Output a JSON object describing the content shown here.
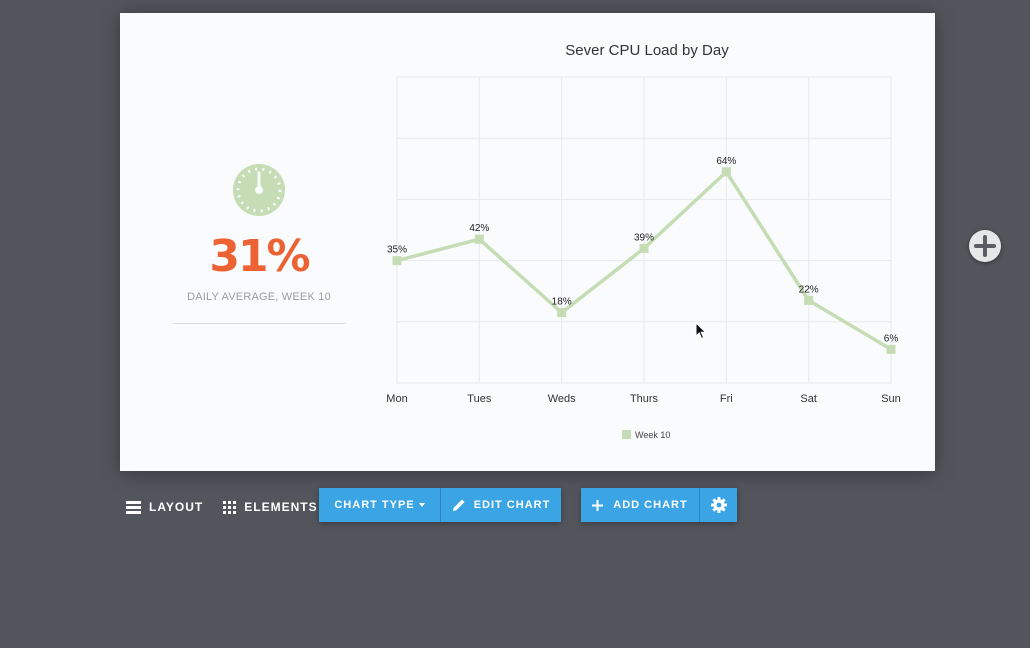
{
  "slide": {
    "stat_value": "31%",
    "stat_caption": "DAILY AVERAGE, WEEK 10",
    "gauge_icon": "gauge-icon"
  },
  "colors": {
    "series": "#c5dcb4",
    "stat": "#ec6232",
    "button": "#3aa4e5",
    "workspace": "#52555c"
  },
  "chart_data": {
    "type": "line",
    "title": "Sever CPU Load by Day",
    "categories": [
      "Mon",
      "Tues",
      "Weds",
      "Thurs",
      "Fri",
      "Sat",
      "Sun"
    ],
    "series": [
      {
        "name": "Week 10",
        "values": [
          35,
          42,
          18,
          39,
          64,
          22,
          6
        ],
        "labels": [
          "35%",
          "42%",
          "18%",
          "39%",
          "64%",
          "22%",
          "6%"
        ]
      }
    ],
    "ylim": [
      -5,
      95
    ],
    "grid": true,
    "legend": "bottom-center",
    "xlabel": "",
    "ylabel": ""
  },
  "toolbar": {
    "layout_label": "LAYOUT",
    "elements_label": "ELEMENTS",
    "chart_type_label": "CHART TYPE",
    "edit_chart_label": "EDIT CHART",
    "add_chart_label": "ADD CHART"
  },
  "icons": {
    "layout": "layout-icon",
    "elements": "grid-icon",
    "edit": "pencil-icon",
    "add": "plus-icon",
    "settings": "gear-icon",
    "fab": "plus-circle-icon",
    "cursor": "mouse-cursor-icon"
  }
}
